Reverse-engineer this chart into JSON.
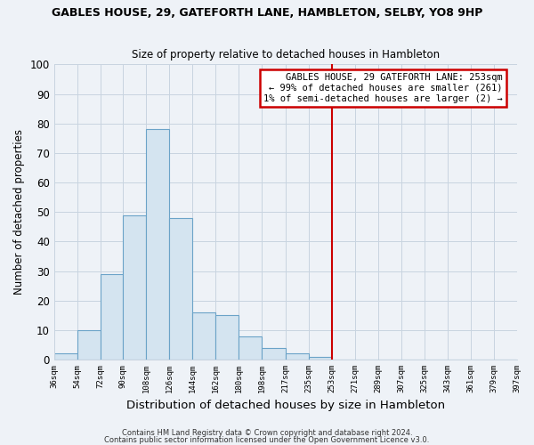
{
  "title": "GABLES HOUSE, 29, GATEFORTH LANE, HAMBLETON, SELBY, YO8 9HP",
  "subtitle": "Size of property relative to detached houses in Hambleton",
  "xlabel": "Distribution of detached houses by size in Hambleton",
  "ylabel": "Number of detached properties",
  "bar_color": "#d4e4f0",
  "bar_edge_color": "#6ba3c8",
  "background_color": "#eef2f7",
  "grid_color": "#c8d4e0",
  "bin_edges": [
    36,
    54,
    72,
    90,
    108,
    126,
    144,
    162,
    180,
    198,
    217,
    235,
    253,
    271,
    289,
    307,
    325,
    343,
    361,
    379,
    397
  ],
  "bar_heights": [
    2,
    10,
    29,
    49,
    78,
    48,
    16,
    15,
    8,
    4,
    2,
    1,
    0,
    0,
    0,
    0,
    0,
    0,
    0,
    0
  ],
  "tick_labels": [
    "36sqm",
    "54sqm",
    "72sqm",
    "90sqm",
    "108sqm",
    "126sqm",
    "144sqm",
    "162sqm",
    "180sqm",
    "198sqm",
    "217sqm",
    "235sqm",
    "253sqm",
    "271sqm",
    "289sqm",
    "307sqm",
    "325sqm",
    "343sqm",
    "361sqm",
    "379sqm",
    "397sqm"
  ],
  "vline_x": 253,
  "vline_color": "#cc0000",
  "annotation_line1": "GABLES HOUSE, 29 GATEFORTH LANE: 253sqm",
  "annotation_line2": "← 99% of detached houses are smaller (261)",
  "annotation_line3": "1% of semi-detached houses are larger (2) →",
  "annotation_box_color": "#ffffff",
  "annotation_border_color": "#cc0000",
  "ylim": [
    0,
    100
  ],
  "yticks": [
    0,
    10,
    20,
    30,
    40,
    50,
    60,
    70,
    80,
    90,
    100
  ],
  "footnote1": "Contains HM Land Registry data © Crown copyright and database right 2024.",
  "footnote2": "Contains public sector information licensed under the Open Government Licence v3.0."
}
